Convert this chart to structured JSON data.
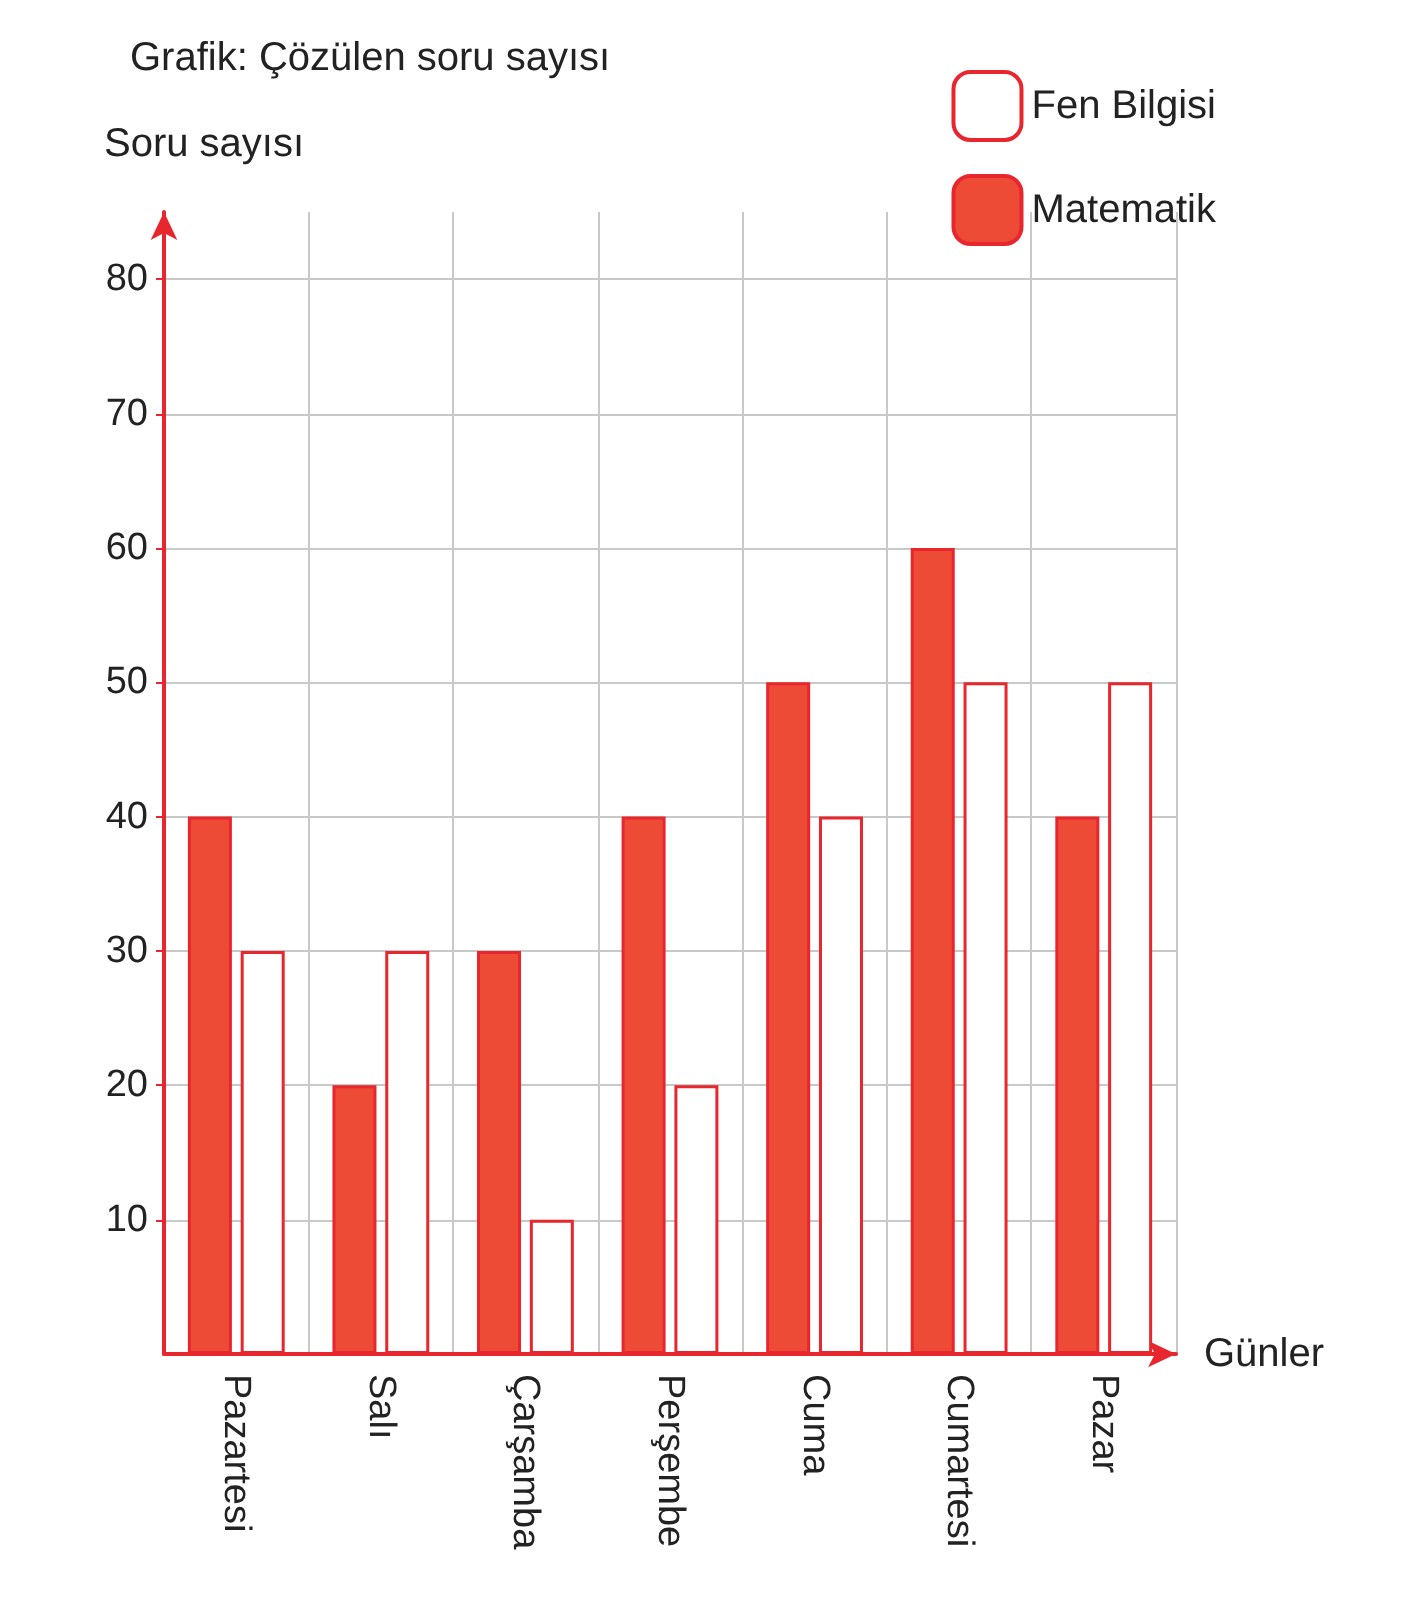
{
  "chart_data": {
    "type": "bar",
    "title": "Grafik: Çözülen soru sayısı",
    "ylabel": "Soru sayısı",
    "xlabel": "Günler",
    "categories": [
      "Pazartesi",
      "Salı",
      "Çarşamba",
      "Perşembe",
      "Cuma",
      "Cumartesi",
      "Pazar"
    ],
    "series": [
      {
        "name": "Matematik",
        "color": "#ee4b37",
        "values": [
          40,
          20,
          30,
          40,
          50,
          60,
          40
        ]
      },
      {
        "name": "Fen Bilgisi",
        "color": "#ffffff",
        "values": [
          30,
          30,
          10,
          20,
          40,
          50,
          50
        ]
      }
    ],
    "ylim": [
      0,
      85
    ],
    "yticks": [
      10,
      20,
      30,
      40,
      50,
      60,
      70,
      80
    ],
    "grid": true,
    "legend": "top right"
  }
}
